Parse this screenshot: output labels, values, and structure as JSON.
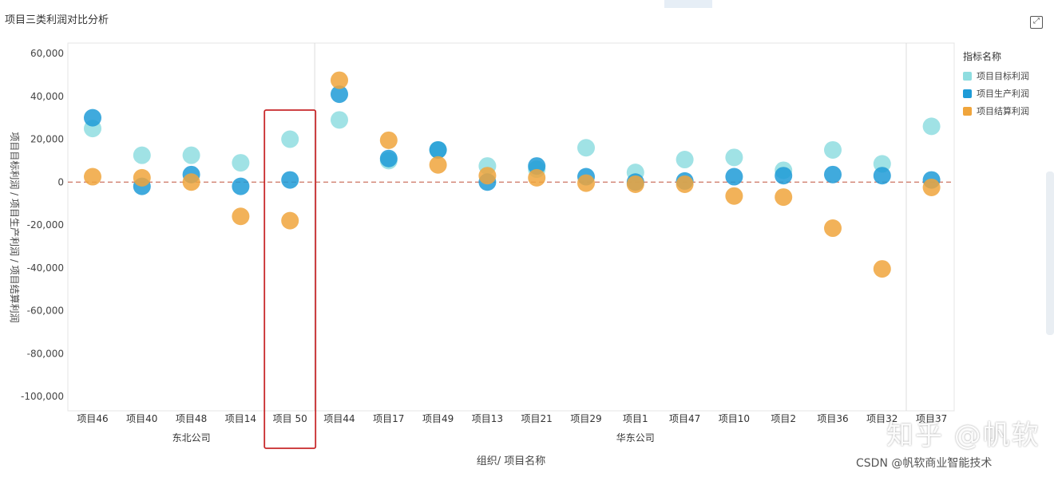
{
  "header": {
    "title": "项目三类利润对比分析",
    "expand_icon": "expand-icon"
  },
  "legend": {
    "title": "指标名称",
    "items": [
      {
        "label": "项目目标利润",
        "color": "#8fdde0"
      },
      {
        "label": "项目生产利润",
        "color": "#1e9bd7"
      },
      {
        "label": "项目结算利润",
        "color": "#f0a53c"
      }
    ]
  },
  "watermark": {
    "zhihu": "知乎 @帆软",
    "csdn": "CSDN @帆软商业智能技术"
  },
  "chart_data": {
    "type": "scatter",
    "xlabel": "组织/ 项目名称",
    "ylabel": "项目目标利润 / 项目生产利润 / 项目结算利润",
    "ylim": [
      -100000,
      60000
    ],
    "yticks": [
      "60,000",
      "40,000",
      "20,000",
      "0",
      "-20,000",
      "-40,000",
      "-60,000",
      "-80,000",
      "-100,000"
    ],
    "groups": [
      {
        "name": "东北公司",
        "categories": [
          "项目46",
          "项目40",
          "项目48",
          "项目14",
          "项目 50"
        ]
      },
      {
        "name": "华东公司",
        "categories": [
          "项目44",
          "项目17",
          "项目49",
          "项目13",
          "项目21",
          "项目29",
          "项目1",
          "项目47",
          "项目10",
          "项目2",
          "项目36",
          "项目32",
          "项目37"
        ]
      }
    ],
    "categories": [
      "项目46",
      "项目40",
      "项目48",
      "项目14",
      "项目 50",
      "项目44",
      "项目17",
      "项目49",
      "项目13",
      "项目21",
      "项目29",
      "项目1",
      "项目47",
      "项目10",
      "项目2",
      "项目36",
      "项目32",
      "项目37"
    ],
    "series": [
      {
        "name": "项目目标利润",
        "color": "#8fdde0",
        "values": [
          25000,
          12500,
          12500,
          9000,
          20000,
          29000,
          10000,
          15000,
          7500,
          6000,
          16000,
          4500,
          10500,
          11500,
          5500,
          15000,
          8500,
          26000
        ]
      },
      {
        "name": "项目生产利润",
        "color": "#1e9bd7",
        "values": [
          30000,
          -2000,
          3500,
          -2000,
          1000,
          41000,
          11000,
          15000,
          0,
          7500,
          2500,
          0,
          500,
          2500,
          3000,
          3500,
          3000,
          1000
        ]
      },
      {
        "name": "项目结算利润",
        "color": "#f0a53c",
        "values": [
          2500,
          2000,
          0,
          -16000,
          -18000,
          47500,
          19500,
          8000,
          3000,
          2000,
          -500,
          -1000,
          -1000,
          -6500,
          -7000,
          -21500,
          -40500,
          -2500
        ]
      }
    ],
    "highlight_category": "项目 50",
    "reference_line": 0,
    "grid": false,
    "legend_position": "right"
  }
}
